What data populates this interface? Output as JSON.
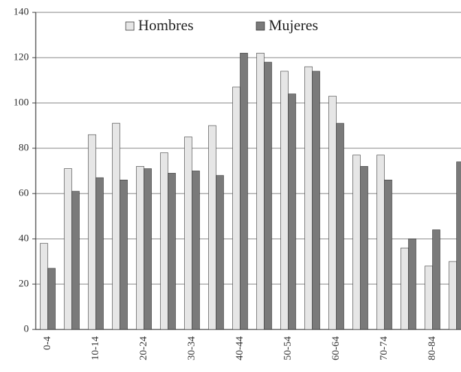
{
  "chart_data": {
    "type": "bar",
    "categories": [
      "0-4",
      null,
      "10-14",
      null,
      "20-24",
      null,
      "30-34",
      null,
      "40-44",
      null,
      "50-54",
      null,
      "60-64",
      null,
      "70-74",
      null,
      "80-84",
      null
    ],
    "series": [
      {
        "name": "Hombres",
        "color": "#e6e6e6",
        "values": [
          38,
          71,
          86,
          91,
          72,
          78,
          85,
          90,
          107,
          122,
          114,
          116,
          103,
          77,
          77,
          36,
          28,
          30
        ]
      },
      {
        "name": "Mujeres",
        "color": "#7a7a7a",
        "values": [
          27,
          61,
          67,
          66,
          71,
          69,
          70,
          68,
          122,
          118,
          104,
          114,
          91,
          72,
          66,
          40,
          44,
          74
        ]
      }
    ],
    "ylim": [
      0,
      140
    ],
    "yticks": [
      0,
      20,
      40,
      60,
      80,
      100,
      120,
      140
    ],
    "grid": true,
    "legend": "top"
  }
}
